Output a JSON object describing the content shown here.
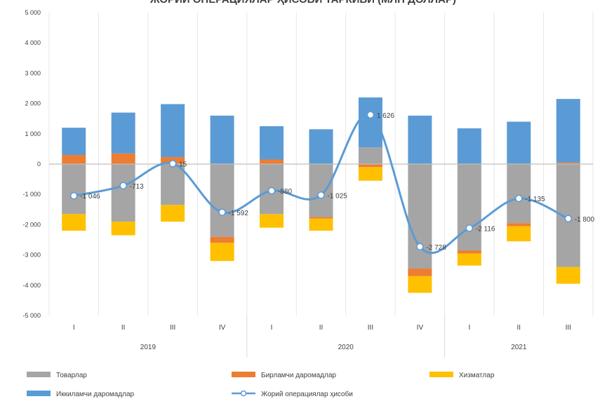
{
  "chart_data": {
    "type": "bar",
    "title": "ЖОРИЙ ОПЕРАЦИЯЛАР ҲИСОБИ ТАРКИБИ (МЛН ДОЛЛАР)",
    "xlabel": "",
    "ylabel": "",
    "ylim": [
      -5000,
      5000
    ],
    "yticks": [
      5000,
      4000,
      3000,
      2000,
      1000,
      0,
      -1000,
      -2000,
      -3000,
      -4000,
      -5000
    ],
    "ytick_labels": [
      "5 000",
      "4 000",
      "3 000",
      "2 000",
      "1 000",
      "0",
      "-1 000",
      "-2 000",
      "-3 000",
      "-4 000",
      "-5 000"
    ],
    "categories": [
      "I",
      "II",
      "III",
      "IV",
      "I",
      "II",
      "III",
      "IV",
      "I",
      "II",
      "III"
    ],
    "groups": [
      {
        "label": "2019",
        "count": 4
      },
      {
        "label": "2020",
        "count": 4
      },
      {
        "label": "2021",
        "count": 3
      }
    ],
    "grid": "vertical",
    "legend_position": "bottom",
    "colors": {
      "goods": "#a5a5a5",
      "primary_income": "#ed7d31",
      "services": "#ffc000",
      "secondary_income": "#5b9bd5",
      "current_account": "#5b9bd5"
    },
    "series": [
      {
        "name": "Товарлар",
        "kind": "bar",
        "key": "goods",
        "values": [
          -1650,
          -1900,
          -1350,
          -2400,
          -1650,
          -1750,
          550,
          -3450,
          -2850,
          -1950,
          -3400
        ]
      },
      {
        "name": "Бирламчи даромадлар",
        "kind": "bar",
        "key": "primary_income",
        "values": [
          300,
          350,
          230,
          -200,
          150,
          -50,
          -100,
          -250,
          -100,
          -100,
          50
        ]
      },
      {
        "name": "Хизматлар",
        "kind": "bar",
        "key": "services",
        "values": [
          -550,
          -450,
          -550,
          -600,
          -450,
          -400,
          -450,
          -550,
          -400,
          -500,
          -550
        ]
      },
      {
        "name": "Иккиламчи даромадлар",
        "kind": "bar",
        "key": "secondary_income",
        "values": [
          900,
          1350,
          1750,
          1600,
          1100,
          1150,
          1650,
          1600,
          1180,
          1400,
          2100
        ]
      },
      {
        "name": "Жорий операциялар ҳисоби",
        "kind": "line",
        "key": "current_account",
        "values": [
          -1046,
          -713,
          15,
          -1592,
          -880,
          -1025,
          1626,
          -2728,
          -2116,
          -1135,
          -1800
        ],
        "labels": [
          "-1 046",
          "-713",
          "15",
          "-1 592",
          "-880",
          "-1 025",
          "1 626",
          "-2 728",
          "-2 116",
          "-1 135",
          "-1 800"
        ]
      }
    ]
  }
}
